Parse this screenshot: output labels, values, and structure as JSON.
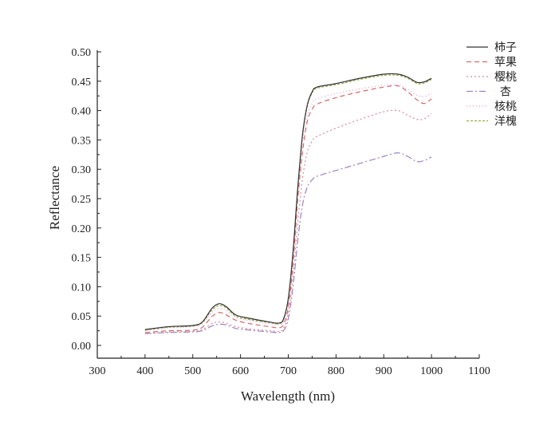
{
  "chart_data": {
    "type": "line",
    "xlabel": "Wavelength (nm)",
    "ylabel": "Reflectance",
    "xlim": [
      300,
      1100
    ],
    "ylim": [
      0.0,
      0.5
    ],
    "xticks": [
      "300",
      "400",
      "500",
      "600",
      "700",
      "800",
      "900",
      "1000",
      "1100"
    ],
    "yticks": [
      "0.00",
      "0.05",
      "0.10",
      "0.15",
      "0.20",
      "0.25",
      "0.30",
      "0.35",
      "0.40",
      "0.45",
      "0.50"
    ],
    "grid": false,
    "legend_position": "top-right",
    "x": [
      400,
      450,
      500,
      520,
      540,
      555,
      570,
      590,
      620,
      660,
      680,
      690,
      700,
      710,
      720,
      730,
      740,
      750,
      760,
      800,
      850,
      900,
      930,
      950,
      970,
      985,
      1000
    ],
    "series": [
      {
        "name": "柿子",
        "color": "#333333",
        "dash": "solid",
        "values": [
          0.027,
          0.032,
          0.034,
          0.04,
          0.063,
          0.071,
          0.066,
          0.052,
          0.046,
          0.04,
          0.038,
          0.045,
          0.08,
          0.16,
          0.27,
          0.36,
          0.41,
          0.432,
          0.44,
          0.446,
          0.455,
          0.462,
          0.462,
          0.457,
          0.448,
          0.449,
          0.455
        ]
      },
      {
        "name": "苹果",
        "color": "#d46a6a",
        "dash": "6,4",
        "values": [
          0.022,
          0.025,
          0.026,
          0.031,
          0.049,
          0.056,
          0.052,
          0.043,
          0.037,
          0.032,
          0.03,
          0.036,
          0.065,
          0.14,
          0.25,
          0.33,
          0.382,
          0.402,
          0.411,
          0.422,
          0.432,
          0.44,
          0.442,
          0.432,
          0.418,
          0.412,
          0.42
        ]
      },
      {
        "name": "樱桃",
        "color": "#e0869c",
        "dash": "2,3",
        "values": [
          0.02,
          0.023,
          0.024,
          0.027,
          0.037,
          0.04,
          0.038,
          0.032,
          0.028,
          0.025,
          0.024,
          0.029,
          0.055,
          0.12,
          0.21,
          0.285,
          0.33,
          0.348,
          0.356,
          0.37,
          0.385,
          0.398,
          0.4,
          0.392,
          0.385,
          0.386,
          0.395
        ]
      },
      {
        "name": "杏",
        "color": "#9b84c4",
        "dash": "8,3,2,3",
        "values": [
          0.02,
          0.022,
          0.023,
          0.025,
          0.033,
          0.036,
          0.035,
          0.029,
          0.026,
          0.023,
          0.022,
          0.025,
          0.045,
          0.1,
          0.18,
          0.24,
          0.27,
          0.282,
          0.288,
          0.298,
          0.31,
          0.322,
          0.328,
          0.322,
          0.313,
          0.315,
          0.321
        ]
      },
      {
        "name": "核桃",
        "color": "#d49ad4",
        "dash": "1,3",
        "values": [
          0.025,
          0.03,
          0.032,
          0.037,
          0.056,
          0.063,
          0.06,
          0.048,
          0.042,
          0.037,
          0.035,
          0.042,
          0.075,
          0.15,
          0.262,
          0.345,
          0.392,
          0.412,
          0.42,
          0.429,
          0.437,
          0.443,
          0.444,
          0.436,
          0.426,
          0.424,
          0.43
        ]
      },
      {
        "name": "洋槐",
        "color": "#9ca84a",
        "dash": "3,2",
        "values": [
          0.026,
          0.031,
          0.033,
          0.039,
          0.06,
          0.068,
          0.064,
          0.05,
          0.044,
          0.039,
          0.037,
          0.044,
          0.078,
          0.158,
          0.268,
          0.358,
          0.408,
          0.43,
          0.438,
          0.444,
          0.453,
          0.46,
          0.46,
          0.455,
          0.446,
          0.447,
          0.453
        ]
      }
    ]
  }
}
